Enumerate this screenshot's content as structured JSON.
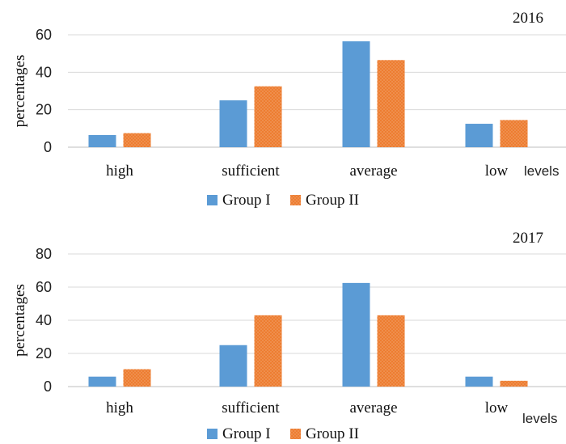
{
  "colors": {
    "group1": "#5b9bd5",
    "group2": "#ed7d31",
    "gridline": "#d9d9d9",
    "baseline": "#bfbfbf"
  },
  "chart_data": [
    {
      "type": "bar",
      "title": "2016",
      "xlabel": "levels",
      "ylabel": "percentages",
      "categories": [
        "high",
        "sufficient",
        "average",
        "low"
      ],
      "series": [
        {
          "name": "Group I",
          "values": [
            6.5,
            25,
            56.5,
            12.5
          ]
        },
        {
          "name": "Group II",
          "values": [
            7.5,
            32.5,
            46.5,
            14.5
          ]
        }
      ],
      "yticks": [
        "0",
        "20",
        "40",
        "60"
      ],
      "ylim": [
        0,
        60
      ],
      "grid": true,
      "legend": "bottom"
    },
    {
      "type": "bar",
      "title": "2017",
      "xlabel": "levels",
      "ylabel": "percentages",
      "categories": [
        "high",
        "sufficient",
        "average",
        "low"
      ],
      "series": [
        {
          "name": "Group I",
          "values": [
            6,
            25,
            62.5,
            6
          ]
        },
        {
          "name": "Group II",
          "values": [
            10.5,
            43,
            43,
            3.5
          ]
        }
      ],
      "yticks": [
        "0",
        "20",
        "40",
        "60",
        "80"
      ],
      "ylim": [
        0,
        80
      ],
      "grid": true,
      "legend": "bottom"
    }
  ]
}
